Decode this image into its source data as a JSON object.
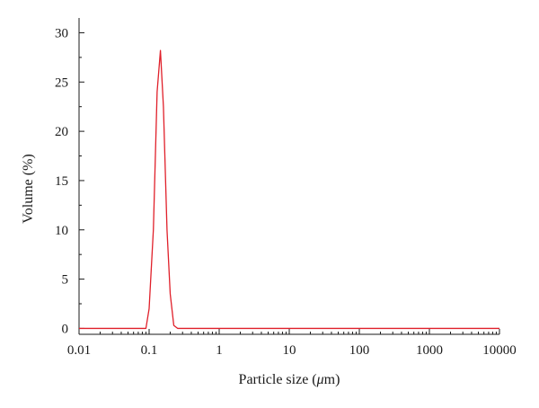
{
  "chart_data": {
    "type": "line",
    "title": "",
    "xlabel_prefix": "Particle size (",
    "xlabel_mu": "μ",
    "xlabel_suffix": "m)",
    "ylabel": "Volume (%)",
    "x_scale": "log",
    "xlim": [
      0.01,
      10000
    ],
    "ylim": [
      -0.6,
      31.5
    ],
    "x_ticks": [
      0.01,
      0.1,
      1,
      10,
      100,
      1000,
      10000
    ],
    "x_tick_labels": [
      "0.01",
      "0.1",
      "1",
      "10",
      "100",
      "1000",
      "10000"
    ],
    "y_ticks": [
      0,
      5,
      10,
      15,
      20,
      25,
      30
    ],
    "y_tick_labels": [
      "0",
      "5",
      "10",
      "15",
      "20",
      "25",
      "30"
    ],
    "grid": false,
    "series": [
      {
        "color": "#e0202a",
        "x": [
          0.01,
          0.09,
          0.1,
          0.115,
          0.13,
          0.145,
          0.16,
          0.18,
          0.2,
          0.225,
          0.255,
          0.3,
          0.4,
          1,
          10,
          100,
          1000,
          10000
        ],
        "y": [
          0,
          0,
          2,
          10,
          24,
          28.2,
          22.5,
          10,
          3.5,
          0.3,
          0,
          0,
          0,
          0,
          0,
          0,
          0,
          0
        ]
      }
    ]
  }
}
